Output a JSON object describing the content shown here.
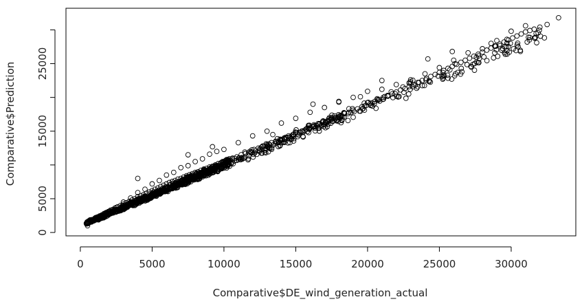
{
  "chart_data": {
    "type": "scatter",
    "title": "",
    "xlabel": "Comparative$DE_wind_generation_actual",
    "ylabel": "Comparative$Prediction",
    "xlim": [
      -1000,
      34500
    ],
    "ylim": [
      -500,
      33200
    ],
    "x_ticks": [
      {
        "value": 0,
        "label": "0"
      },
      {
        "value": 5000,
        "label": "5000"
      },
      {
        "value": 10000,
        "label": "10000"
      },
      {
        "value": 15000,
        "label": "15000"
      },
      {
        "value": 20000,
        "label": "20000"
      },
      {
        "value": 25000,
        "label": "25000"
      },
      {
        "value": 30000,
        "label": "30000"
      }
    ],
    "y_ticks": [
      {
        "value": 0,
        "label": "0"
      },
      {
        "value": 5000,
        "label": "5000"
      },
      {
        "value": 10000,
        "label": ""
      },
      {
        "value": 15000,
        "label": "15000"
      },
      {
        "value": 20000,
        "label": ""
      },
      {
        "value": 25000,
        "label": "25000"
      },
      {
        "value": 30000,
        "label": ""
      }
    ],
    "grid": false,
    "marker": "open-circle",
    "points_x": [
      500,
      520,
      640,
      720,
      800,
      900,
      1000,
      1100,
      1200,
      1350,
      1500,
      1650,
      1800,
      1950,
      2100,
      2250,
      2400,
      2600,
      2800,
      3000,
      3200,
      3400,
      3600,
      3800,
      4000,
      4200,
      4400,
      4600,
      4800,
      5000,
      5200,
      5400,
      5600,
      5800,
      6000,
      6200,
      6400,
      6600,
      6800,
      7000,
      7200,
      7400,
      7600,
      7800,
      8000,
      8200,
      8400,
      8600,
      8800,
      9000,
      9200,
      9400,
      9600,
      9800,
      10000,
      10300,
      10600,
      10900,
      11200,
      11500,
      11800,
      12100,
      12400,
      12700,
      13000,
      13300,
      13600,
      13900,
      14200,
      14500,
      14800,
      15100,
      15400,
      15700,
      16000,
      16300,
      16600,
      16900,
      17200,
      17500,
      17800,
      18100,
      18400,
      18700,
      19000,
      19300,
      19600,
      19900,
      20200,
      20500,
      20800,
      21100,
      21400,
      21700,
      22000,
      22300,
      22600,
      22900,
      23200,
      23500,
      23800,
      24100,
      24400,
      24700,
      25000,
      25300,
      25600,
      25900,
      26200,
      26500,
      26800,
      27100,
      27400,
      27700,
      28000,
      28300,
      28600,
      28900,
      29200,
      29500,
      29800,
      30100,
      30400,
      30700,
      31000,
      31300,
      31600,
      32000,
      32500,
      33300,
      1000,
      1500,
      2000,
      2500,
      3000,
      3500,
      4000,
      4500,
      5000,
      5500,
      6000,
      6500,
      7000,
      7500,
      8000,
      8500,
      9000,
      9500,
      10000,
      11000,
      12000,
      13000,
      14000,
      15000,
      16000,
      17000,
      18000,
      19000,
      20000,
      21000,
      22000,
      23000,
      24000,
      25000,
      26000,
      27000,
      28000,
      29000,
      30000,
      31000,
      4000,
      7500,
      9200,
      11000,
      13400,
      16200,
      18000,
      19500,
      21000,
      24200,
      25900,
      28600,
      29700,
      31200
    ],
    "points_y": [
      1000,
      1350,
      1500,
      1600,
      1700,
      1800,
      2000,
      2100,
      2300,
      2450,
      2600,
      2800,
      2950,
      3100,
      3300,
      3400,
      3600,
      3800,
      4000,
      4200,
      4400,
      4600,
      4800,
      5000,
      5300,
      5450,
      5600,
      5800,
      6000,
      6200,
      6400,
      6600,
      6800,
      7000,
      7200,
      7400,
      7550,
      7700,
      7900,
      8000,
      8200,
      8400,
      8550,
      8700,
      8900,
      9000,
      9200,
      9400,
      9500,
      9700,
      9800,
      10000,
      10200,
      10300,
      10500,
      10700,
      11000,
      11200,
      11500,
      11700,
      12000,
      12300,
      12500,
      12800,
      13000,
      13300,
      13500,
      13800,
      14000,
      14300,
      14500,
      14800,
      15000,
      15300,
      15500,
      15800,
      16000,
      16300,
      16500,
      16800,
      17000,
      17300,
      17600,
      17800,
      18100,
      18300,
      18600,
      18800,
      19100,
      19400,
      19700,
      20000,
      20200,
      20500,
      20800,
      21100,
      21300,
      21600,
      21900,
      22200,
      22500,
      22800,
      23100,
      23400,
      23700,
      24000,
      24300,
      24600,
      24900,
      25200,
      25500,
      25800,
      26100,
      26400,
      26700,
      27000,
      27300,
      27600,
      27900,
      28200,
      28500,
      28800,
      29100,
      29400,
      29700,
      29900,
      30100,
      30400,
      30800,
      31800,
      1800,
      2400,
      3100,
      3700,
      4500,
      5100,
      5900,
      6400,
      7200,
      7700,
      8500,
      8900,
      9600,
      9900,
      10500,
      10900,
      11600,
      12000,
      12300,
      13300,
      14300,
      15000,
      16200,
      16900,
      17800,
      18500,
      19400,
      20000,
      20900,
      21200,
      21900,
      22600,
      23500,
      24400,
      25500,
      26600,
      27200,
      28400,
      29800,
      30600,
      8000,
      11500,
      12700,
      10800,
      14500,
      19000,
      19300,
      20100,
      22500,
      25700,
      26800,
      28000,
      28600,
      28900
    ]
  }
}
